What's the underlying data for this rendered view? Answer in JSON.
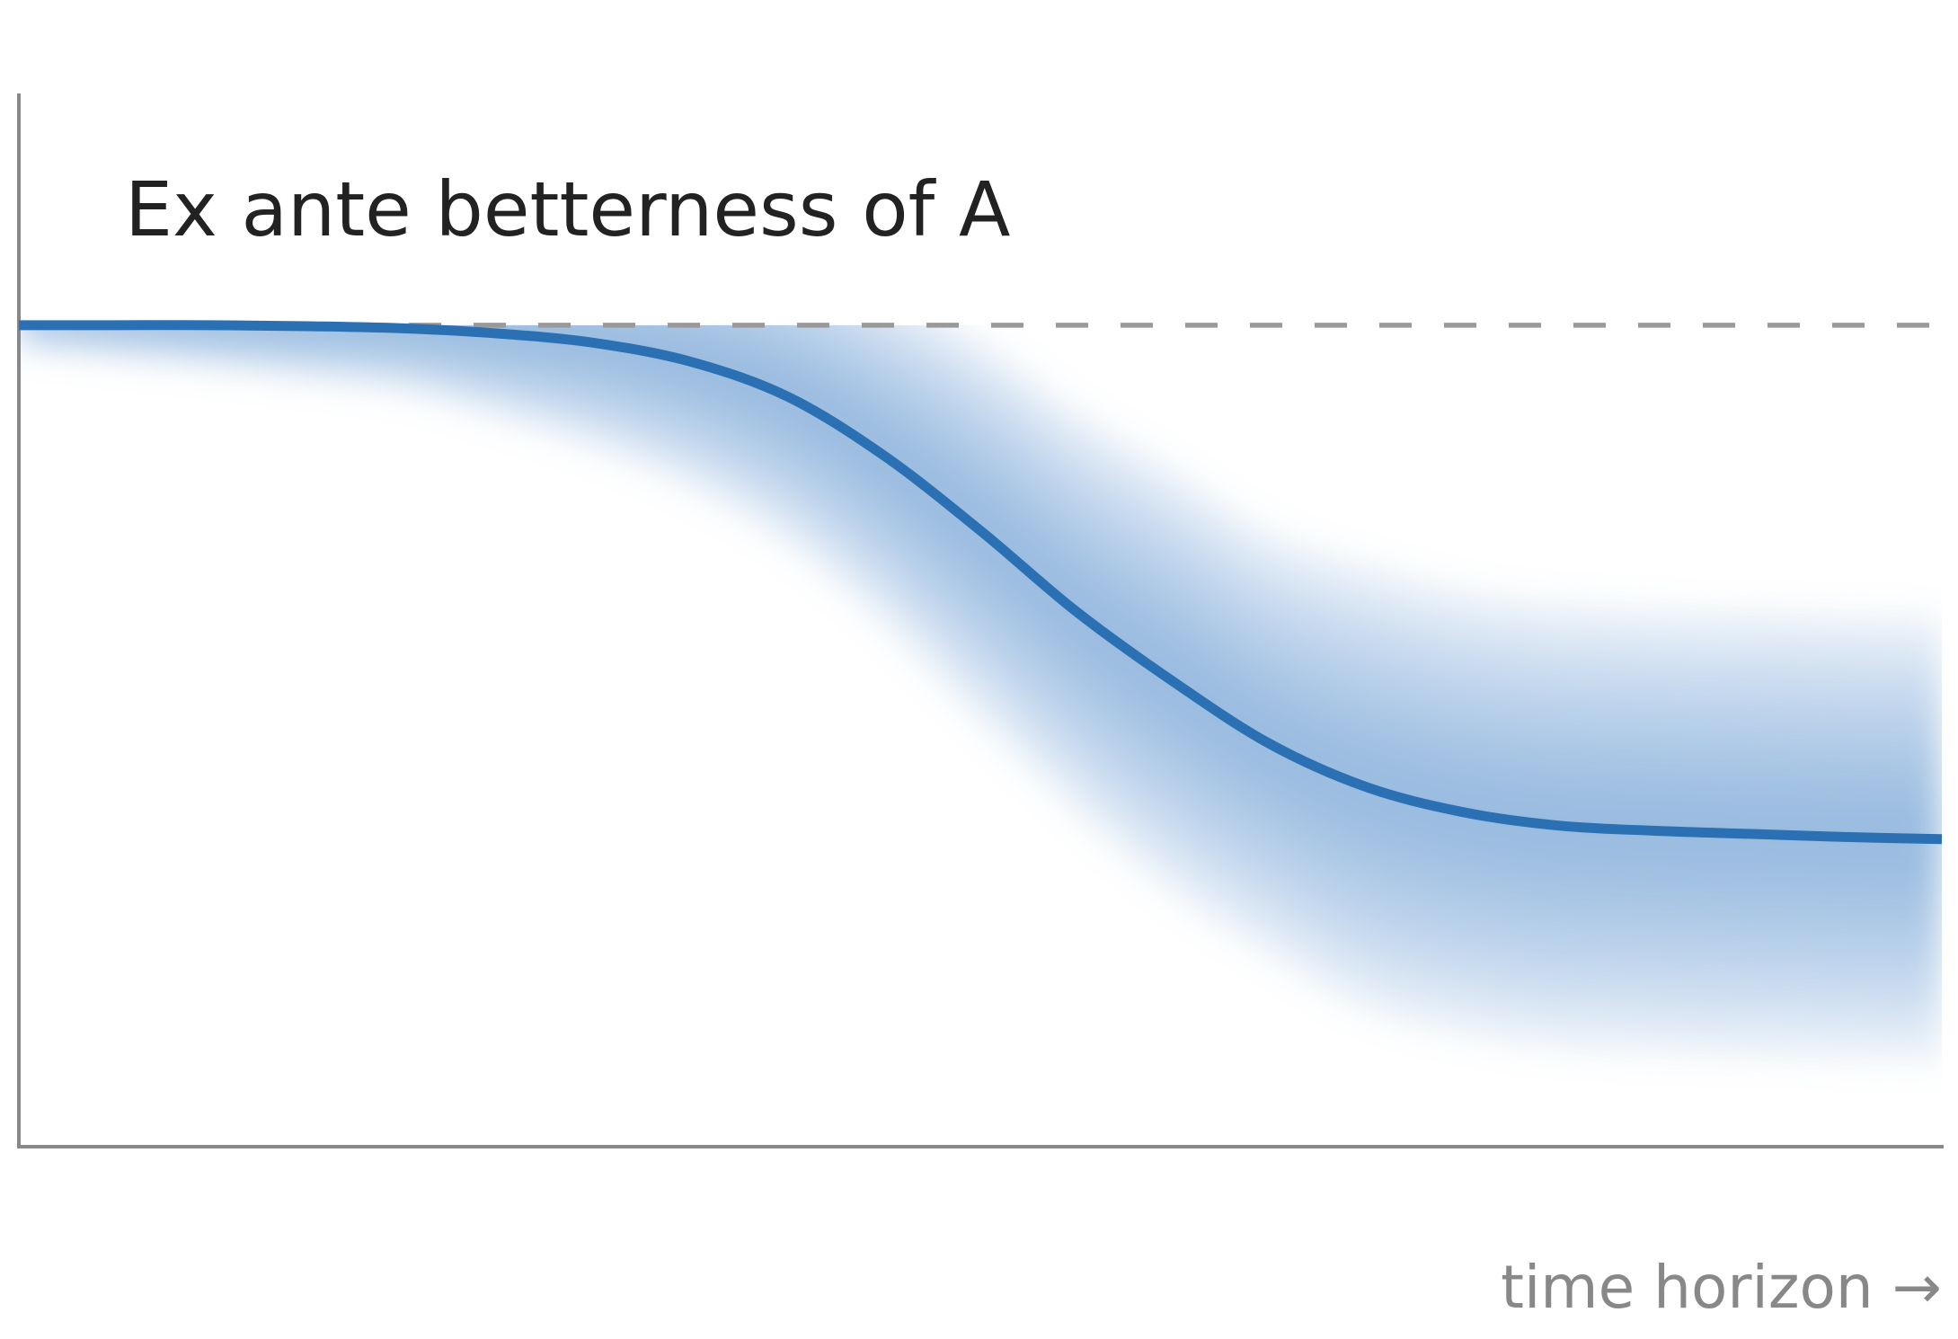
{
  "chart_data": {
    "type": "line",
    "title": "Ex ante betterness of A",
    "x_label": "time horizon →",
    "x": [
      0,
      5,
      10,
      15,
      20,
      25,
      30,
      35,
      40,
      45,
      50,
      55,
      60,
      65,
      70,
      75,
      80,
      85,
      90,
      95,
      100
    ],
    "xlim": [
      0,
      100
    ],
    "ylim": [
      0,
      100
    ],
    "reference": 78,
    "reference_color": "#999999",
    "series": [
      {
        "color": "#2a70b3",
        "band_color": "#6a9bd0",
        "values": [
          78,
          78,
          78,
          77.9,
          77.7,
          77.2,
          76.3,
          74.5,
          71.2,
          65.6,
          58.5,
          50.8,
          44.2,
          38.3,
          34.2,
          31.8,
          30.5,
          30,
          29.7,
          29.4,
          29.2
        ],
        "spread": [
          2,
          3,
          4,
          5,
          6,
          8,
          10,
          12,
          14,
          16,
          18,
          19,
          20,
          20,
          21,
          21,
          21,
          21,
          21,
          21,
          21
        ]
      }
    ]
  }
}
